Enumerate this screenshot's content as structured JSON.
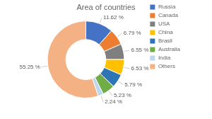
{
  "chart_data": {
    "type": "donut",
    "title": "Area of countries",
    "categories": [
      "Russia",
      "Canada",
      "USA",
      "China",
      "Brasil",
      "Australia",
      "India",
      "Others"
    ],
    "values": [
      11.62,
      6.79,
      6.55,
      6.53,
      5.79,
      5.23,
      2.24,
      55.25
    ],
    "value_labels": [
      "11.62 %",
      "6.79 %",
      "6.55 %",
      "6.53 %",
      "5.79 %",
      "5.23 %",
      "2.24 %",
      "55.25 %"
    ],
    "colors": [
      "#4472c4",
      "#ed7d31",
      "#7f7f7f",
      "#ffc000",
      "#2e75b6",
      "#70ad47",
      "#bdd7ee",
      "#f4b183"
    ],
    "data_labels": true,
    "legend": "right"
  }
}
